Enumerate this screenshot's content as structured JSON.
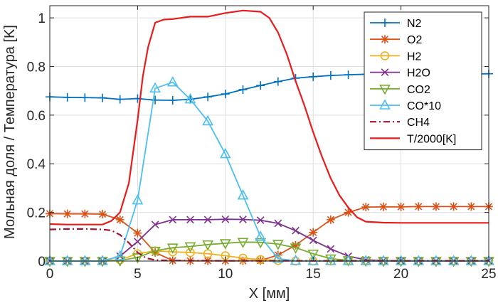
{
  "chart_data": {
    "type": "line",
    "xlabel": "X [мм]",
    "ylabel": "Мольная доля / Температура [K]",
    "xlim": [
      0,
      25
    ],
    "ylim": [
      0,
      1.05
    ],
    "xticks": [
      0,
      5,
      10,
      15,
      20,
      25
    ],
    "yticks": [
      0,
      0.2,
      0.4,
      0.6,
      0.8,
      1
    ],
    "xtick_labels": [
      "0",
      "5",
      "10",
      "15",
      "20",
      "25"
    ],
    "ytick_labels": [
      "0",
      "0.2",
      "0.4",
      "0.6",
      "0.8",
      "1"
    ],
    "grid": true,
    "legend_position": "top-right",
    "series": [
      {
        "name": "N2",
        "color": "#0072BD",
        "marker": "plus",
        "dash": "solid",
        "x": [
          0,
          1,
          2,
          3,
          4,
          5,
          6,
          7,
          8,
          9,
          10,
          11,
          12,
          13,
          14,
          15,
          16,
          17,
          18,
          19,
          20,
          21,
          22,
          23,
          24,
          25
        ],
        "y": [
          0.675,
          0.673,
          0.672,
          0.671,
          0.665,
          0.668,
          0.662,
          0.661,
          0.665,
          0.675,
          0.687,
          0.705,
          0.722,
          0.738,
          0.752,
          0.758,
          0.763,
          0.766,
          0.768,
          0.769,
          0.769,
          0.769,
          0.769,
          0.769,
          0.769,
          0.77
        ]
      },
      {
        "name": "O2",
        "color": "#D95319",
        "marker": "star",
        "dash": "solid",
        "x": [
          0,
          1,
          2,
          3,
          4,
          5,
          6,
          7,
          8,
          9,
          10,
          11,
          12,
          13,
          14,
          15,
          16,
          17,
          18,
          19,
          20,
          21,
          22,
          23,
          24,
          25
        ],
        "y": [
          0.195,
          0.194,
          0.194,
          0.193,
          0.17,
          0.115,
          0.035,
          0.002,
          0.001,
          0.001,
          0.001,
          0.001,
          0.002,
          0.025,
          0.065,
          0.118,
          0.17,
          0.2,
          0.222,
          0.223,
          0.223,
          0.224,
          0.224,
          0.224,
          0.224,
          0.224
        ]
      },
      {
        "name": "H2",
        "color": "#EDB120",
        "marker": "circle",
        "dash": "solid",
        "x": [
          0,
          1,
          2,
          3,
          4,
          5,
          6,
          7,
          8,
          9,
          10,
          11,
          12,
          13,
          14,
          15,
          16,
          17,
          18,
          19,
          20,
          21,
          22,
          23,
          24,
          25
        ],
        "y": [
          0,
          0,
          0,
          0,
          0.005,
          0.03,
          0.042,
          0.038,
          0.035,
          0.03,
          0.022,
          0.012,
          0.006,
          0.002,
          0,
          0,
          0,
          0,
          0,
          0,
          0,
          0,
          0,
          0,
          0,
          0
        ]
      },
      {
        "name": "H2O",
        "color": "#7E2F8E",
        "marker": "x",
        "dash": "solid",
        "x": [
          0,
          1,
          2,
          3,
          4,
          5,
          6,
          7,
          8,
          9,
          10,
          11,
          12,
          13,
          14,
          15,
          16,
          17,
          18,
          19,
          20,
          21,
          22,
          23,
          24,
          25
        ],
        "y": [
          0,
          0,
          0,
          0,
          0.02,
          0.08,
          0.15,
          0.17,
          0.17,
          0.17,
          0.172,
          0.171,
          0.168,
          0.155,
          0.125,
          0.085,
          0.05,
          0.02,
          0.005,
          0.002,
          0.001,
          0.001,
          0.001,
          0.001,
          0.001,
          0.001
        ]
      },
      {
        "name": "CO2",
        "color": "#77AC30",
        "marker": "triangle-down",
        "dash": "solid",
        "x": [
          0,
          1,
          2,
          3,
          4,
          5,
          6,
          7,
          8,
          9,
          10,
          11,
          12,
          13,
          14,
          15,
          16,
          17,
          18,
          19,
          20,
          21,
          22,
          23,
          24,
          25
        ],
        "y": [
          0,
          0,
          0,
          0,
          0.002,
          0.015,
          0.042,
          0.055,
          0.06,
          0.068,
          0.073,
          0.078,
          0.077,
          0.07,
          0.055,
          0.03,
          0.01,
          0.003,
          0.001,
          0,
          0,
          0,
          0,
          0,
          0,
          0
        ]
      },
      {
        "name": "CO*10",
        "color": "#4DBEEE",
        "marker": "triangle-up",
        "dash": "solid",
        "x": [
          0,
          1,
          2,
          3,
          4,
          5,
          6,
          7,
          8,
          9,
          10,
          11,
          12,
          13,
          14,
          15,
          16,
          17,
          18,
          19,
          20,
          21,
          22,
          23,
          24,
          25
        ],
        "y": [
          0,
          0,
          0,
          0,
          0.02,
          0.25,
          0.71,
          0.735,
          0.665,
          0.575,
          0.44,
          0.27,
          0.1,
          0.01,
          0.001,
          0,
          0,
          0,
          0,
          0,
          0,
          0,
          0,
          0,
          0,
          0
        ]
      },
      {
        "name": "CH4",
        "color": "#A2142F",
        "marker": "none",
        "dash": "dashdot",
        "x": [
          0,
          1,
          2,
          3,
          3.5,
          4,
          4.5,
          5,
          5.5,
          6,
          7,
          10,
          15,
          20,
          25
        ],
        "y": [
          0.13,
          0.132,
          0.132,
          0.13,
          0.126,
          0.108,
          0.075,
          0.035,
          0.012,
          0.004,
          0.002,
          0.001,
          0.001,
          0.001,
          0.001
        ]
      },
      {
        "name": "T/2000[K]",
        "color": "#E81C1C",
        "marker": "none",
        "dash": "solid",
        "x": [
          0,
          1,
          2,
          3,
          3.5,
          4,
          4.5,
          5,
          5.3,
          5.6,
          6,
          6.5,
          7,
          8,
          9,
          10,
          11,
          12,
          12.5,
          13,
          13.5,
          14,
          14.5,
          15,
          15.5,
          16,
          16.5,
          17,
          17.5,
          18,
          19,
          20,
          21,
          22,
          23,
          24,
          25
        ],
        "y": [
          0.152,
          0.15,
          0.15,
          0.15,
          0.165,
          0.2,
          0.32,
          0.58,
          0.76,
          0.88,
          0.98,
          0.993,
          0.995,
          1.005,
          1.005,
          1.02,
          1.03,
          1.025,
          1.0,
          0.94,
          0.85,
          0.74,
          0.64,
          0.53,
          0.43,
          0.34,
          0.27,
          0.22,
          0.18,
          0.162,
          0.158,
          0.157,
          0.157,
          0.157,
          0.157,
          0.157,
          0.157
        ]
      }
    ]
  }
}
